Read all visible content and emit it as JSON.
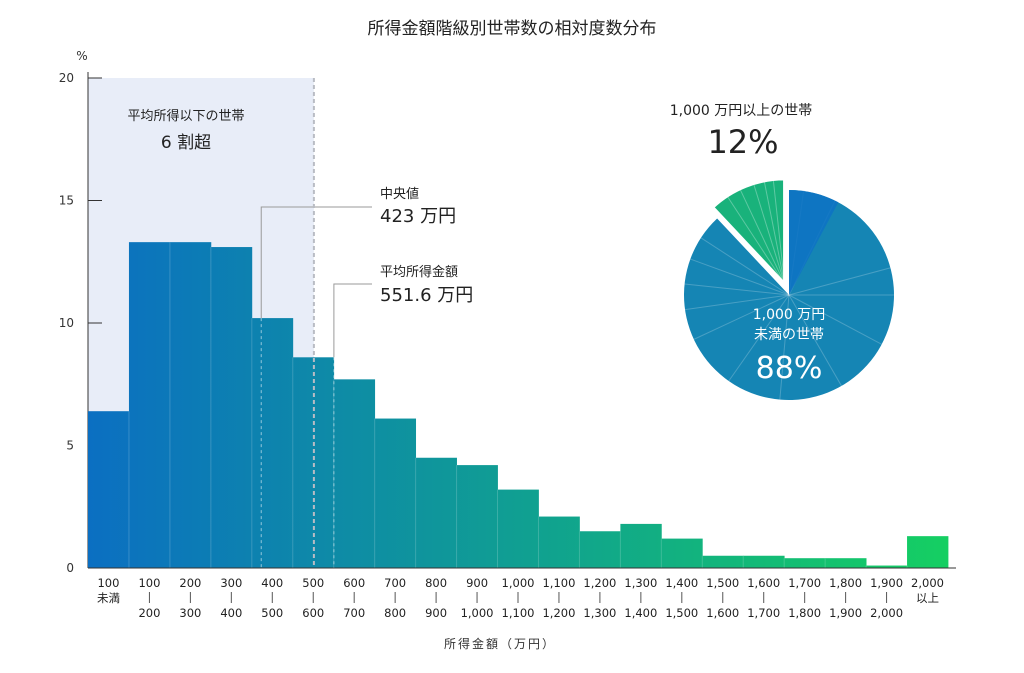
{
  "chart_data": {
    "type": "bar",
    "title": "所得金額階級別世帯数の相対度数分布",
    "ylabel": "%",
    "xlabel": "所得金額（万円）",
    "ylim": [
      0,
      20
    ],
    "yticks": [
      0,
      5,
      10,
      15,
      20
    ],
    "categories": [
      {
        "top": "100",
        "bottom": "未満"
      },
      {
        "top": "100",
        "bottom": "200"
      },
      {
        "top": "200",
        "bottom": "300"
      },
      {
        "top": "300",
        "bottom": "400"
      },
      {
        "top": "400",
        "bottom": "500"
      },
      {
        "top": "500",
        "bottom": "600"
      },
      {
        "top": "600",
        "bottom": "700"
      },
      {
        "top": "700",
        "bottom": "800"
      },
      {
        "top": "800",
        "bottom": "900"
      },
      {
        "top": "900",
        "bottom": "1,000"
      },
      {
        "top": "1,000",
        "bottom": "1,100"
      },
      {
        "top": "1,100",
        "bottom": "1,200"
      },
      {
        "top": "1,200",
        "bottom": "1,300"
      },
      {
        "top": "1,300",
        "bottom": "1,400"
      },
      {
        "top": "1,400",
        "bottom": "1,500"
      },
      {
        "top": "1,500",
        "bottom": "1,600"
      },
      {
        "top": "1,600",
        "bottom": "1,700"
      },
      {
        "top": "1,700",
        "bottom": "1,800"
      },
      {
        "top": "1,800",
        "bottom": "1,900"
      },
      {
        "top": "1,900",
        "bottom": "2,000"
      },
      {
        "top": "2,000",
        "bottom": "以上"
      }
    ],
    "values": [
      6.4,
      13.3,
      13.3,
      13.1,
      10.2,
      8.6,
      7.7,
      6.1,
      4.5,
      4.2,
      3.2,
      2.1,
      1.5,
      1.8,
      1.2,
      0.5,
      0.5,
      0.4,
      0.4,
      0.1,
      1.3
    ],
    "colors": {
      "bar_start": "#0b6fc2",
      "bar_end": "#15cf62",
      "shade": "#e8edf8",
      "axis": "#333333",
      "marker": "#9a9a9a"
    },
    "shade_annotation": {
      "line1": "平均所得以下の世帯",
      "line2": "6 割超"
    },
    "median": {
      "label": "中央値",
      "value_text": "423 万円",
      "value": 423
    },
    "mean": {
      "label": "平均所得金額",
      "value_text": "551.6 万円",
      "value": 551.6
    },
    "pie": {
      "slices": [
        {
          "label": "1,000 万円未満の世帯",
          "line1": "1,000 万円",
          "line2": "未満の世帯",
          "value_text": "88%",
          "value": 88
        },
        {
          "label": "1,000 万円以上の世帯",
          "line1": "1,000 万円以上の世帯",
          "value_text": "12%",
          "value": 12
        }
      ]
    }
  }
}
